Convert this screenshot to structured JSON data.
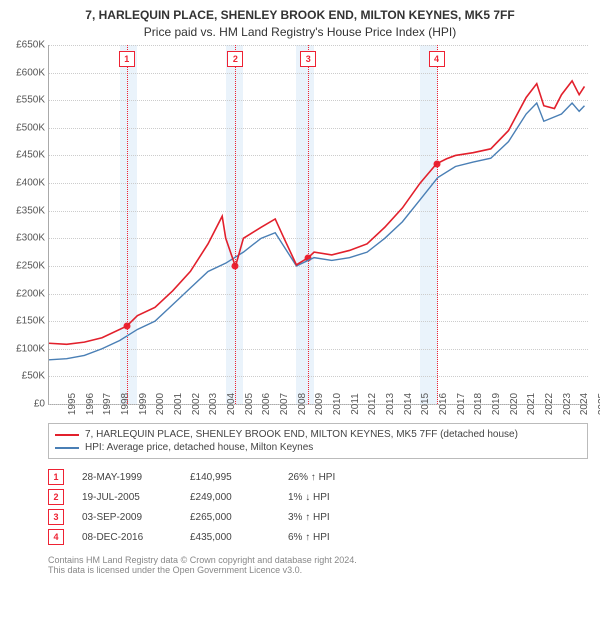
{
  "title": "7, HARLEQUIN PLACE, SHENLEY BROOK END, MILTON KEYNES, MK5 7FF",
  "subtitle": "Price paid vs. HM Land Registry's House Price Index (HPI)",
  "chart": {
    "type": "line",
    "background_color": "#ffffff",
    "grid_color": "#cccccc",
    "axis_color": "#aaaaaa",
    "xlim": [
      1995,
      2025.5
    ],
    "ylim": [
      0,
      650000
    ],
    "ytick_step": 50000,
    "yticks": [
      "£0",
      "£50K",
      "£100K",
      "£150K",
      "£200K",
      "£250K",
      "£300K",
      "£350K",
      "£400K",
      "£450K",
      "£500K",
      "£550K",
      "£600K",
      "£650K"
    ],
    "xticks": [
      1995,
      1996,
      1997,
      1998,
      1999,
      2000,
      2001,
      2002,
      2003,
      2004,
      2005,
      2006,
      2007,
      2008,
      2009,
      2010,
      2011,
      2012,
      2013,
      2014,
      2015,
      2016,
      2017,
      2018,
      2019,
      2020,
      2021,
      2022,
      2023,
      2024,
      2025
    ],
    "shaded_bands": [
      [
        1999,
        2000
      ],
      [
        2005,
        2006
      ],
      [
        2009,
        2010
      ],
      [
        2016,
        2017
      ]
    ],
    "series": [
      {
        "name": "property",
        "color": "#e2202c",
        "width": 1.6,
        "points": [
          [
            1995,
            110000
          ],
          [
            1996,
            108000
          ],
          [
            1997,
            112000
          ],
          [
            1998,
            120000
          ],
          [
            1999.4,
            140995
          ],
          [
            2000,
            160000
          ],
          [
            2001,
            175000
          ],
          [
            2002,
            205000
          ],
          [
            2003,
            240000
          ],
          [
            2004,
            290000
          ],
          [
            2004.8,
            340000
          ],
          [
            2005,
            300000
          ],
          [
            2005.55,
            249000
          ],
          [
            2006,
            300000
          ],
          [
            2007,
            320000
          ],
          [
            2007.8,
            335000
          ],
          [
            2008.3,
            300000
          ],
          [
            2009,
            252000
          ],
          [
            2009.67,
            265000
          ],
          [
            2010,
            275000
          ],
          [
            2011,
            270000
          ],
          [
            2012,
            278000
          ],
          [
            2013,
            290000
          ],
          [
            2014,
            320000
          ],
          [
            2015,
            355000
          ],
          [
            2016,
            400000
          ],
          [
            2016.93,
            435000
          ],
          [
            2017.5,
            444000
          ],
          [
            2018,
            450000
          ],
          [
            2019,
            455000
          ],
          [
            2020,
            462000
          ],
          [
            2021,
            495000
          ],
          [
            2022,
            555000
          ],
          [
            2022.6,
            580000
          ],
          [
            2023,
            540000
          ],
          [
            2023.6,
            535000
          ],
          [
            2024,
            560000
          ],
          [
            2024.6,
            585000
          ],
          [
            2025,
            560000
          ],
          [
            2025.3,
            575000
          ]
        ]
      },
      {
        "name": "hpi",
        "color": "#4a7fb5",
        "width": 1.4,
        "points": [
          [
            1995,
            80000
          ],
          [
            1996,
            82000
          ],
          [
            1997,
            88000
          ],
          [
            1998,
            100000
          ],
          [
            1999,
            115000
          ],
          [
            2000,
            135000
          ],
          [
            2001,
            150000
          ],
          [
            2002,
            180000
          ],
          [
            2003,
            210000
          ],
          [
            2004,
            240000
          ],
          [
            2005,
            255000
          ],
          [
            2006,
            275000
          ],
          [
            2007,
            300000
          ],
          [
            2007.8,
            310000
          ],
          [
            2008.5,
            275000
          ],
          [
            2009,
            250000
          ],
          [
            2010,
            265000
          ],
          [
            2011,
            260000
          ],
          [
            2012,
            265000
          ],
          [
            2013,
            275000
          ],
          [
            2014,
            300000
          ],
          [
            2015,
            330000
          ],
          [
            2016,
            370000
          ],
          [
            2017,
            410000
          ],
          [
            2018,
            430000
          ],
          [
            2019,
            438000
          ],
          [
            2020,
            445000
          ],
          [
            2021,
            475000
          ],
          [
            2022,
            525000
          ],
          [
            2022.6,
            545000
          ],
          [
            2023,
            512000
          ],
          [
            2024,
            525000
          ],
          [
            2024.6,
            545000
          ],
          [
            2025,
            530000
          ],
          [
            2025.3,
            540000
          ]
        ]
      }
    ],
    "markers": [
      {
        "n": "1",
        "x": 1999.4,
        "y": 140995
      },
      {
        "n": "2",
        "x": 2005.55,
        "y": 249000
      },
      {
        "n": "3",
        "x": 2009.67,
        "y": 265000
      },
      {
        "n": "4",
        "x": 2016.93,
        "y": 435000
      }
    ]
  },
  "legend": [
    {
      "color": "#e2202c",
      "label": "7, HARLEQUIN PLACE, SHENLEY BROOK END, MILTON KEYNES, MK5 7FF (detached house)"
    },
    {
      "color": "#4a7fb5",
      "label": "HPI: Average price, detached house, Milton Keynes"
    }
  ],
  "transactions": [
    {
      "n": "1",
      "date": "28-MAY-1999",
      "price": "£140,995",
      "delta": "26% ↑ HPI"
    },
    {
      "n": "2",
      "date": "19-JUL-2005",
      "price": "£249,000",
      "delta": "1% ↓ HPI"
    },
    {
      "n": "3",
      "date": "03-SEP-2009",
      "price": "£265,000",
      "delta": "3% ↑ HPI"
    },
    {
      "n": "4",
      "date": "08-DEC-2016",
      "price": "£435,000",
      "delta": "6% ↑ HPI"
    }
  ],
  "footer1": "Contains HM Land Registry data © Crown copyright and database right 2024.",
  "footer2": "This data is licensed under the Open Government Licence v3.0."
}
